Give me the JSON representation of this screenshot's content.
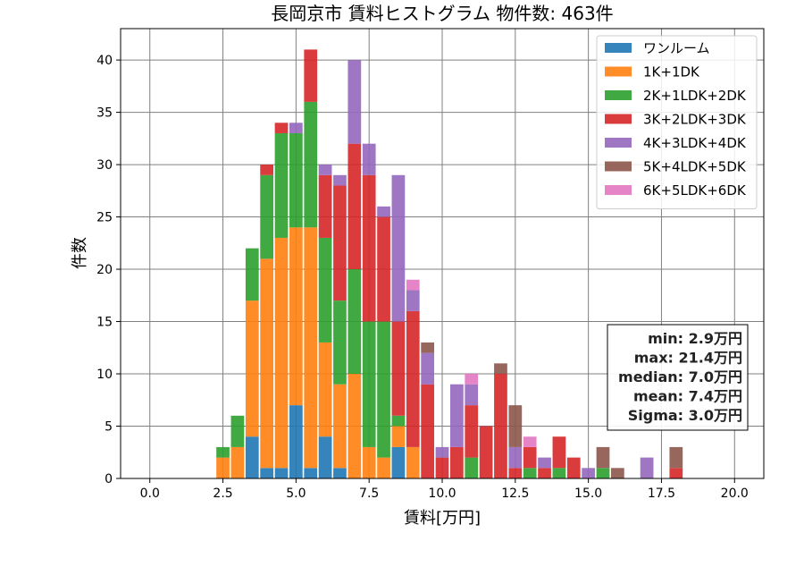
{
  "chart_data": {
    "type": "bar",
    "stacked": true,
    "title": "長岡京市 賃料ヒストグラム  物件数: 463件",
    "xlabel": "賃料[万円]",
    "ylabel": "件数",
    "xlim": [
      -1.0,
      21.0
    ],
    "ylim": [
      0,
      43
    ],
    "xticks": [
      "0.0",
      "2.5",
      "5.0",
      "7.5",
      "10.0",
      "12.5",
      "15.0",
      "17.5",
      "20.0"
    ],
    "xtick_values": [
      0,
      2.5,
      5,
      7.5,
      10,
      12.5,
      15,
      17.5,
      20
    ],
    "yticks": [
      "0",
      "5",
      "10",
      "15",
      "20",
      "25",
      "30",
      "35",
      "40"
    ],
    "ytick_values": [
      0,
      5,
      10,
      15,
      20,
      25,
      30,
      35,
      40
    ],
    "grid": true,
    "legend_position": "upper right",
    "bin_width": 0.5,
    "x": [
      2.5,
      3.0,
      3.5,
      4.0,
      4.5,
      5.0,
      5.5,
      6.0,
      6.5,
      7.0,
      7.5,
      8.0,
      8.5,
      9.0,
      9.5,
      10.0,
      10.5,
      11.0,
      11.5,
      12.0,
      12.5,
      13.0,
      13.5,
      14.0,
      14.5,
      15.0,
      15.5,
      16.0,
      16.5,
      17.0,
      17.5,
      18.0
    ],
    "series": [
      {
        "name": "ワンルーム",
        "color": "#1f77b4",
        "values": [
          0,
          0,
          4,
          1,
          1,
          7,
          1,
          4,
          1,
          0,
          0,
          0,
          3,
          0,
          0,
          0,
          0,
          0,
          0,
          0,
          0,
          0,
          0,
          0,
          0,
          0,
          0,
          0,
          0,
          0,
          0,
          0
        ]
      },
      {
        "name": "1K+1DK",
        "color": "#ff7f0e",
        "values": [
          2,
          3,
          13,
          20,
          22,
          17,
          23,
          9,
          8,
          10,
          3,
          2,
          2,
          3,
          0,
          0,
          0,
          0,
          0,
          0,
          0,
          0,
          0,
          0,
          0,
          0,
          0,
          0,
          0,
          0,
          0,
          0
        ]
      },
      {
        "name": "2K+1LDK+2DK",
        "color": "#2ca02c",
        "values": [
          1,
          3,
          5,
          8,
          10,
          9,
          12,
          10,
          8,
          10,
          12,
          13,
          1,
          0,
          0,
          0,
          0,
          2,
          0,
          0,
          0,
          1,
          0,
          1,
          0,
          0,
          1,
          0,
          0,
          0,
          0,
          0
        ]
      },
      {
        "name": "3K+2LDK+3DK",
        "color": "#d62728",
        "values": [
          0,
          0,
          0,
          1,
          1,
          0,
          5,
          6,
          11,
          12,
          14,
          10,
          9,
          13,
          9,
          2,
          3,
          5,
          5,
          10,
          1,
          2,
          1,
          3,
          2,
          0,
          0,
          0,
          0,
          0,
          0,
          1
        ]
      },
      {
        "name": "4K+3LDK+4DK",
        "color": "#9467bd",
        "values": [
          0,
          0,
          0,
          0,
          0,
          1,
          0,
          1,
          1,
          8,
          3,
          1,
          14,
          2,
          3,
          1,
          6,
          2,
          0,
          0,
          2,
          0,
          1,
          0,
          0,
          1,
          0,
          0,
          0,
          2,
          0,
          0
        ]
      },
      {
        "name": "5K+4LDK+5DK",
        "color": "#8c564b",
        "values": [
          0,
          0,
          0,
          0,
          0,
          0,
          0,
          0,
          0,
          0,
          0,
          0,
          0,
          0,
          1,
          0,
          0,
          0,
          0,
          1,
          4,
          0,
          0,
          0,
          0,
          0,
          2,
          1,
          0,
          0,
          0,
          2
        ]
      },
      {
        "name": "6K+5LDK+6DK",
        "color": "#e377c2",
        "values": [
          0,
          0,
          0,
          0,
          0,
          0,
          0,
          0,
          0,
          0,
          0,
          0,
          0,
          1,
          0,
          0,
          0,
          1,
          0,
          0,
          0,
          1,
          0,
          0,
          0,
          0,
          0,
          0,
          0,
          0,
          0,
          0
        ]
      }
    ],
    "stats_box": [
      "min: 2.9万円",
      "max: 21.4万円",
      "median: 7.0万円",
      "mean: 7.4万円",
      "Sigma: 3.0万円"
    ]
  }
}
